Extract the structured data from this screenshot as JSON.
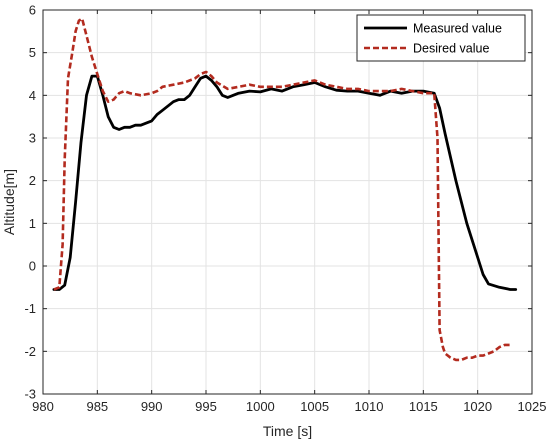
{
  "chart_data": {
    "type": "line",
    "title": "",
    "xlabel": "Time [s]",
    "ylabel": "Altitude[m]",
    "xlim": [
      980,
      1025
    ],
    "ylim": [
      -3,
      6
    ],
    "xticks": [
      980,
      985,
      990,
      995,
      1000,
      1005,
      1010,
      1015,
      1020,
      1025
    ],
    "yticks": [
      -3,
      -2,
      -1,
      0,
      1,
      2,
      3,
      4,
      5,
      6
    ],
    "grid": true,
    "legend_position": "top-right",
    "series": [
      {
        "name": "Measured value",
        "color": "#000000",
        "style": "solid",
        "points": [
          [
            981.0,
            -0.55
          ],
          [
            981.5,
            -0.55
          ],
          [
            982.0,
            -0.45
          ],
          [
            982.5,
            0.2
          ],
          [
            983.0,
            1.5
          ],
          [
            983.5,
            2.9
          ],
          [
            984.0,
            4.0
          ],
          [
            984.5,
            4.45
          ],
          [
            985.0,
            4.45
          ],
          [
            985.5,
            4.0
          ],
          [
            986.0,
            3.5
          ],
          [
            986.5,
            3.25
          ],
          [
            987.0,
            3.2
          ],
          [
            987.5,
            3.25
          ],
          [
            988.0,
            3.25
          ],
          [
            988.5,
            3.3
          ],
          [
            989.0,
            3.3
          ],
          [
            990.0,
            3.4
          ],
          [
            990.5,
            3.55
          ],
          [
            991.0,
            3.65
          ],
          [
            992.0,
            3.85
          ],
          [
            992.5,
            3.9
          ],
          [
            993.0,
            3.9
          ],
          [
            993.5,
            4.0
          ],
          [
            994.0,
            4.2
          ],
          [
            994.5,
            4.4
          ],
          [
            995.0,
            4.45
          ],
          [
            995.5,
            4.35
          ],
          [
            996.0,
            4.2
          ],
          [
            996.5,
            4.0
          ],
          [
            997.0,
            3.95
          ],
          [
            997.5,
            4.0
          ],
          [
            998.0,
            4.05
          ],
          [
            999.0,
            4.1
          ],
          [
            1000.0,
            4.08
          ],
          [
            1001.0,
            4.15
          ],
          [
            1002.0,
            4.1
          ],
          [
            1003.0,
            4.2
          ],
          [
            1004.0,
            4.25
          ],
          [
            1005.0,
            4.3
          ],
          [
            1006.0,
            4.2
          ],
          [
            1007.0,
            4.12
          ],
          [
            1008.0,
            4.1
          ],
          [
            1009.0,
            4.1
          ],
          [
            1010.0,
            4.05
          ],
          [
            1011.0,
            4.0
          ],
          [
            1012.0,
            4.1
          ],
          [
            1013.0,
            4.05
          ],
          [
            1014.0,
            4.1
          ],
          [
            1015.0,
            4.1
          ],
          [
            1016.0,
            4.05
          ],
          [
            1016.5,
            3.7
          ],
          [
            1017.0,
            3.1
          ],
          [
            1018.0,
            2.0
          ],
          [
            1019.0,
            1.0
          ],
          [
            1020.0,
            0.2
          ],
          [
            1020.5,
            -0.2
          ],
          [
            1021.0,
            -0.42
          ],
          [
            1022.0,
            -0.5
          ],
          [
            1023.0,
            -0.55
          ],
          [
            1023.5,
            -0.55
          ]
        ]
      },
      {
        "name": "Desired value",
        "color": "#b32b1f",
        "style": "dashed",
        "points": [
          [
            981.0,
            -0.55
          ],
          [
            981.5,
            -0.5
          ],
          [
            981.8,
            0.5
          ],
          [
            982.0,
            2.5
          ],
          [
            982.3,
            4.4
          ],
          [
            982.7,
            5.0
          ],
          [
            983.0,
            5.5
          ],
          [
            983.3,
            5.75
          ],
          [
            983.6,
            5.8
          ],
          [
            984.0,
            5.4
          ],
          [
            984.5,
            4.9
          ],
          [
            985.0,
            4.5
          ],
          [
            985.5,
            4.1
          ],
          [
            986.0,
            3.85
          ],
          [
            986.5,
            3.9
          ],
          [
            987.0,
            4.05
          ],
          [
            987.5,
            4.1
          ],
          [
            988.0,
            4.05
          ],
          [
            989.0,
            4.0
          ],
          [
            990.0,
            4.05
          ],
          [
            990.5,
            4.1
          ],
          [
            991.0,
            4.2
          ],
          [
            992.0,
            4.25
          ],
          [
            993.0,
            4.3
          ],
          [
            994.0,
            4.4
          ],
          [
            994.5,
            4.5
          ],
          [
            995.0,
            4.55
          ],
          [
            995.5,
            4.45
          ],
          [
            996.0,
            4.3
          ],
          [
            997.0,
            4.15
          ],
          [
            998.0,
            4.2
          ],
          [
            999.0,
            4.25
          ],
          [
            1000.0,
            4.2
          ],
          [
            1001.0,
            4.2
          ],
          [
            1002.0,
            4.2
          ],
          [
            1003.0,
            4.25
          ],
          [
            1004.0,
            4.3
          ],
          [
            1005.0,
            4.35
          ],
          [
            1006.0,
            4.25
          ],
          [
            1007.0,
            4.2
          ],
          [
            1008.0,
            4.15
          ],
          [
            1009.0,
            4.15
          ],
          [
            1010.0,
            4.1
          ],
          [
            1011.0,
            4.1
          ],
          [
            1012.0,
            4.1
          ],
          [
            1013.0,
            4.15
          ],
          [
            1014.0,
            4.1
          ],
          [
            1015.0,
            4.05
          ],
          [
            1016.0,
            4.05
          ],
          [
            1016.3,
            3.0
          ],
          [
            1016.5,
            -1.5
          ],
          [
            1016.8,
            -1.9
          ],
          [
            1017.0,
            -2.05
          ],
          [
            1017.5,
            -2.15
          ],
          [
            1018.0,
            -2.2
          ],
          [
            1018.5,
            -2.2
          ],
          [
            1019.0,
            -2.15
          ],
          [
            1019.5,
            -2.15
          ],
          [
            1020.0,
            -2.1
          ],
          [
            1020.5,
            -2.1
          ],
          [
            1021.0,
            -2.05
          ],
          [
            1021.5,
            -2.0
          ],
          [
            1022.0,
            -1.9
          ],
          [
            1022.5,
            -1.85
          ],
          [
            1023.0,
            -1.85
          ]
        ]
      }
    ]
  }
}
